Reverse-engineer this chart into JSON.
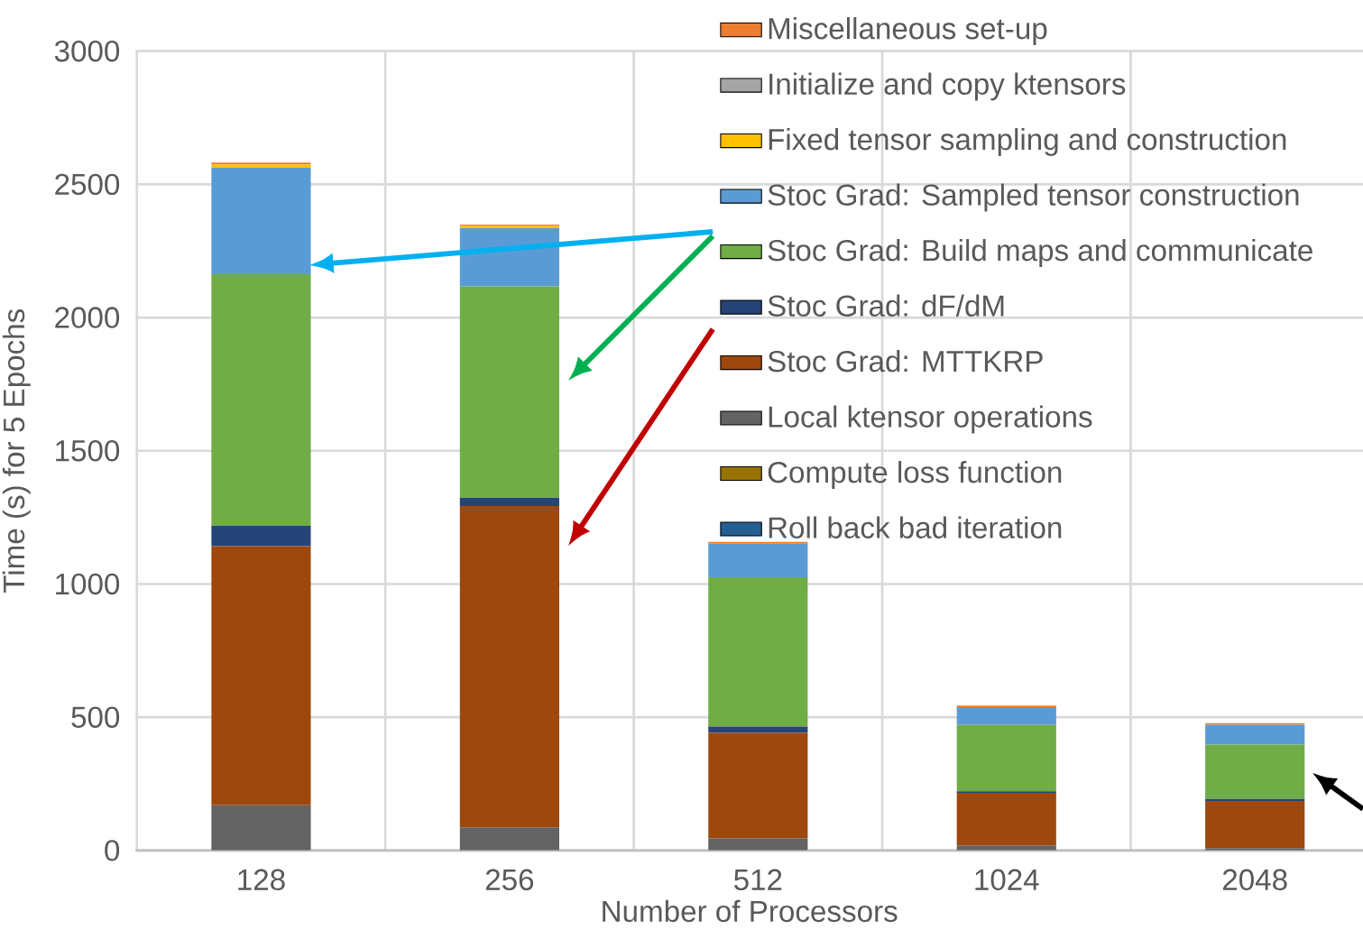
{
  "chart_data": {
    "type": "bar",
    "stacked": true,
    "xlabel": "Number of Processors",
    "ylabel": "Time (s) for 5 Epochs",
    "categories": [
      "128",
      "256",
      "512",
      "1024",
      "2048"
    ],
    "series": [
      {
        "name": "Roll back bad iteration",
        "color": "#255e91",
        "values": [
          null,
          null,
          null,
          null,
          null
        ]
      },
      {
        "name": "Compute loss function",
        "color": "#997300",
        "values": [
          null,
          null,
          null,
          null,
          null
        ]
      },
      {
        "name": "Local ktensor operations",
        "color": "#636363",
        "values": [
          170,
          87,
          46,
          19,
          9
        ]
      },
      {
        "name": "Stoc Grad:  MTTKRP",
        "color": "#9e480e",
        "values": [
          972,
          1206,
          395,
          197,
          177
        ]
      },
      {
        "name": "Stoc Grad:  dF/dM",
        "color": "#264478",
        "values": [
          76,
          31,
          24,
          6,
          7
        ]
      },
      {
        "name": "Stoc Grad:  Build maps and communicate",
        "color": "#70ad47",
        "values": [
          945,
          793,
          560,
          249,
          204
        ]
      },
      {
        "name": "Stoc Grad:  Sampled tensor construction",
        "color": "#5b9bd5",
        "values": [
          400,
          219,
          126,
          67,
          75
        ]
      },
      {
        "name": "Fixed tensor sampling and construction",
        "color": "#ffc000",
        "values": [
          12,
          8,
          null,
          null,
          null
        ]
      },
      {
        "name": "Initialize and copy ktensors",
        "color": "#a5a5a5",
        "values": [
          null,
          null,
          null,
          null,
          null
        ]
      },
      {
        "name": "Miscellaneous set-up",
        "color": "#ed7d31",
        "values": [
          7,
          5,
          7,
          6,
          6
        ]
      }
    ],
    "ylim": [
      0,
      3000
    ],
    "yticks": [
      0,
      500,
      1000,
      1500,
      2000,
      2500,
      3000
    ],
    "grid": true,
    "legend": "top right"
  }
}
